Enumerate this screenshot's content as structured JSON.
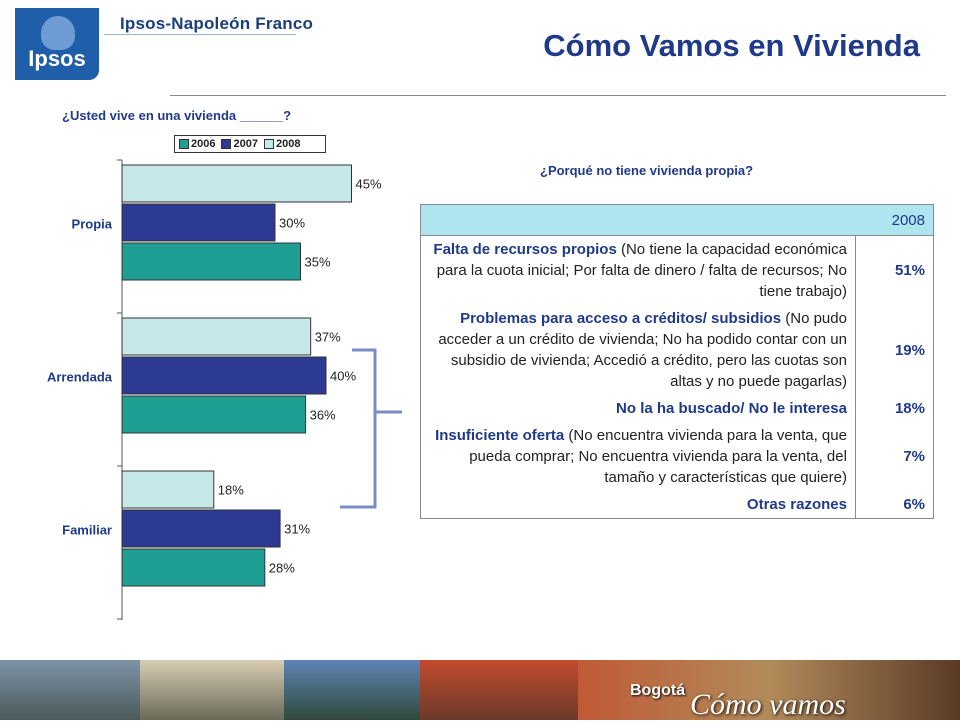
{
  "header": {
    "logo": "Ipsos",
    "brand": "Ipsos-Napoleón Franco",
    "title": "Cómo Vamos en Vivienda"
  },
  "question_left": "¿Usted vive en una vivienda ______?",
  "question_right": "¿Porqué no tiene vivienda propia?",
  "colors": {
    "2006": "#1f9e93",
    "2007": "#2d3a94",
    "2008": "#c7e8e8",
    "title": "#1f3a8a",
    "bracket": "#7a8cc6"
  },
  "chart_data": {
    "type": "bar",
    "orientation": "horizontal",
    "categories": [
      "Propia",
      "Arrendada",
      "Familiar"
    ],
    "series": [
      {
        "name": "2006",
        "values": [
          35,
          36,
          28
        ]
      },
      {
        "name": "2007",
        "values": [
          30,
          40,
          31
        ]
      },
      {
        "name": "2008",
        "values": [
          45,
          37,
          18
        ]
      }
    ],
    "value_labels": {
      "2006": [
        "35%",
        "36%",
        "28%"
      ],
      "2007": [
        "30%",
        "40%",
        "31%"
      ],
      "2008": [
        "45%",
        "37%",
        "18%"
      ]
    },
    "legend": [
      "2006",
      "2007",
      "2008"
    ],
    "legend_position": "top",
    "xlim": [
      0,
      50
    ]
  },
  "table": {
    "year_header": "2008",
    "rows": [
      {
        "bold": "Falta de recursos propios",
        "rest": " (No tiene la capacidad económica para la cuota inicial; Por falta de dinero / falta de recursos; No tiene trabajo)",
        "pct": "51%"
      },
      {
        "bold": "Problemas para acceso a créditos/ subsidios",
        "rest": " (No pudo acceder a un crédito de vivienda; No ha podido contar con un subsidio de vivienda; Accedió a crédito, pero las cuotas son altas y no puede pagarlas)",
        "pct": "19%"
      },
      {
        "bold": "No la ha buscado/ No le interesa",
        "rest": "",
        "pct": "18%"
      },
      {
        "bold": "Insuficiente oferta",
        "rest": " (No encuentra vivienda para la venta, que pueda comprar; No encuentra vivienda para la venta, del tamaño y características que quiere)",
        "pct": "7%"
      },
      {
        "bold": "Otras razones",
        "rest": "",
        "pct": "6%"
      }
    ]
  },
  "footer": {
    "brand_small": "Bogotá",
    "brand_large": "Cómo vamos"
  }
}
